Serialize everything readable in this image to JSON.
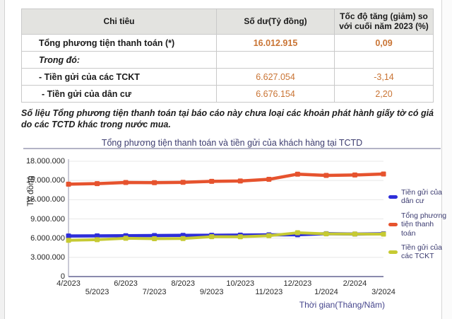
{
  "table": {
    "header": {
      "col1": "Chi tiêu",
      "col2_bold": "Số dư",
      "col2_normal": "(Tỷ đồng)",
      "col3": "Tốc độ tăng (giảm) so với cuối năm 2023 (%)"
    },
    "rows": [
      {
        "label": "Tổng phương tiện thanh toán (*)",
        "value": "16.012.915",
        "change": "0,09"
      },
      {
        "label": "Trong đó:",
        "value": "",
        "change": ""
      },
      {
        "label": "- Tiền gửi của các TCKT",
        "value": "6.627.054",
        "change": "-3,14"
      },
      {
        "label": "- Tiền gửi của dân cư",
        "value": "6.676.154",
        "change": "2,20"
      }
    ]
  },
  "note": "Số liệu Tổng phương tiện thanh toán tại báo cáo này chưa loại các khoản phát hành giấy tờ có giá do các TCTD khác trong nước mua.",
  "chart_data": {
    "type": "line",
    "title": "Tổng phương tiện thanh toán và tiền gửi của khách hàng tại TCTD",
    "ylabel": "Tỷ đồng",
    "xlabel": "Thời gian(Tháng/Năm)",
    "x": [
      "4/2023",
      "5/2023",
      "6/2023",
      "7/2023",
      "8/2023",
      "9/2023",
      "10/2023",
      "11/2023",
      "12/2023",
      "1/2024",
      "2/2024",
      "3/2024"
    ],
    "ylim": [
      0,
      18000000
    ],
    "ytick_step": 3000000,
    "ytick_labels": [
      "18.000.000",
      "15.000.000",
      "12.000.000",
      "9.000.000",
      "6.000.000",
      "3.000.000",
      "0"
    ],
    "grid": true,
    "legend_position": "right",
    "series": [
      {
        "name": "Tiền gửi của dân cư",
        "color": "#2e2ed9",
        "values": [
          6330000,
          6350000,
          6380000,
          6400000,
          6430000,
          6450000,
          6470000,
          6520000,
          6530000,
          6700000,
          6640000,
          6676154
        ]
      },
      {
        "name": "Tổng phương tiện thanh toán",
        "color": "#e6532e",
        "values": [
          14430000,
          14510000,
          14690000,
          14660000,
          14710000,
          14870000,
          14920000,
          15180000,
          15990000,
          15790000,
          15860000,
          16012915
        ]
      },
      {
        "name": "Tiền gửi của các TCKT",
        "color": "#c6ca33",
        "values": [
          5660000,
          5750000,
          5980000,
          5910000,
          5940000,
          6230000,
          6210000,
          6380000,
          6840000,
          6670000,
          6640000,
          6627054
        ]
      }
    ]
  },
  "colors": {
    "value_text": "#c97434",
    "header_bg": "#e3e3e0",
    "title_navy": "#3c3c6f",
    "axis_caption": "#45458c"
  }
}
